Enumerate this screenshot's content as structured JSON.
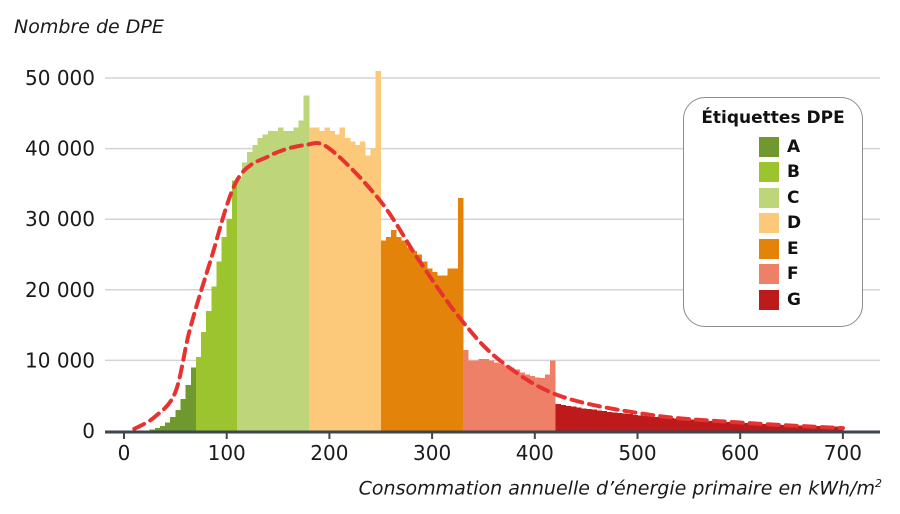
{
  "chart_data": {
    "type": "bar",
    "title": "",
    "ylabel": "Nombre de DPE",
    "xlabel": "Consommation annuelle d’énergie primaire en kWh/m",
    "xlabel_sup": "2",
    "xlim": [
      0,
      700
    ],
    "ylim": [
      0,
      50000
    ],
    "grid": true,
    "x_ticks": [
      0,
      100,
      200,
      300,
      400,
      500,
      600,
      700
    ],
    "y_ticks": [
      0,
      10000,
      20000,
      30000,
      40000,
      50000
    ],
    "y_tick_labels": [
      "0",
      "10 000",
      "20 000",
      "30 000",
      "40 000",
      "50 000"
    ],
    "bin_width": 5,
    "bin_start": 15,
    "values_thousands": [
      0.05,
      0.1,
      0.2,
      0.4,
      0.7,
      1.2,
      2,
      3,
      4.5,
      6.5,
      9,
      10.5,
      14,
      17,
      20.5,
      24,
      27.5,
      30,
      35.5,
      36,
      38,
      39.5,
      40.5,
      41.5,
      42,
      42.5,
      42.5,
      43,
      42.5,
      42.5,
      43,
      44,
      47.5,
      43,
      43,
      42.5,
      43,
      42.5,
      42,
      43,
      41.5,
      41,
      40.5,
      41,
      39,
      40,
      51,
      27,
      27.5,
      28.5,
      27.5,
      27,
      26,
      25.5,
      25,
      24,
      23,
      22.5,
      22,
      22,
      23,
      23,
      33,
      11.5,
      10,
      10,
      10.2,
      10.2,
      10,
      9.7,
      9.5,
      9.3,
      9,
      8.7,
      8.3,
      8,
      7.8,
      7.6,
      7.5,
      8,
      10,
      3.8,
      3.68,
      3.55,
      3.44,
      3.32,
      3.21,
      3.11,
      3.01,
      2.91,
      2.81,
      2.72,
      2.63,
      2.54,
      2.46,
      2.38,
      2.3,
      2.23,
      2.15,
      2.08,
      2.01,
      1.95,
      1.89,
      1.82,
      1.76,
      1.7,
      1.65,
      1.6,
      1.54,
      1.49,
      1.44,
      1.4,
      1.35,
      1.31,
      1.26,
      1.22,
      1.18,
      1.14,
      1.11,
      1.07,
      1.03,
      1.0,
      0.97,
      0.94,
      0.91,
      0.88,
      0.85,
      0.82,
      0.79,
      0.77,
      0.74,
      0.72,
      0.69,
      0.67,
      0.65,
      0.63,
      0.61
    ],
    "classes": [
      {
        "label": "A",
        "from": 0,
        "to": 70,
        "color": "#6f982f"
      },
      {
        "label": "B",
        "from": 70,
        "to": 110,
        "color": "#9cc42e"
      },
      {
        "label": "C",
        "from": 110,
        "to": 180,
        "color": "#bfd57a"
      },
      {
        "label": "D",
        "from": 180,
        "to": 250,
        "color": "#fbc979"
      },
      {
        "label": "E",
        "from": 250,
        "to": 330,
        "color": "#e4830a"
      },
      {
        "label": "F",
        "from": 330,
        "to": 420,
        "color": "#ef8068"
      },
      {
        "label": "G",
        "from": 420,
        "to": 700,
        "color": "#bd1a1c"
      }
    ],
    "fit_curve": {
      "color": "#e63331",
      "x": [
        10,
        30,
        50,
        64,
        84,
        110,
        142,
        176,
        200,
        249,
        288,
        327,
        366,
        424,
        512,
        600,
        700
      ],
      "y_thousands": [
        0.3,
        2,
        5.5,
        14.3,
        24,
        35.5,
        39,
        40.5,
        40,
        32.7,
        24,
        16,
        10,
        5,
        2.3,
        1.2,
        0.4
      ]
    },
    "legend": {
      "title": "Étiquettes DPE",
      "position": "right"
    }
  }
}
